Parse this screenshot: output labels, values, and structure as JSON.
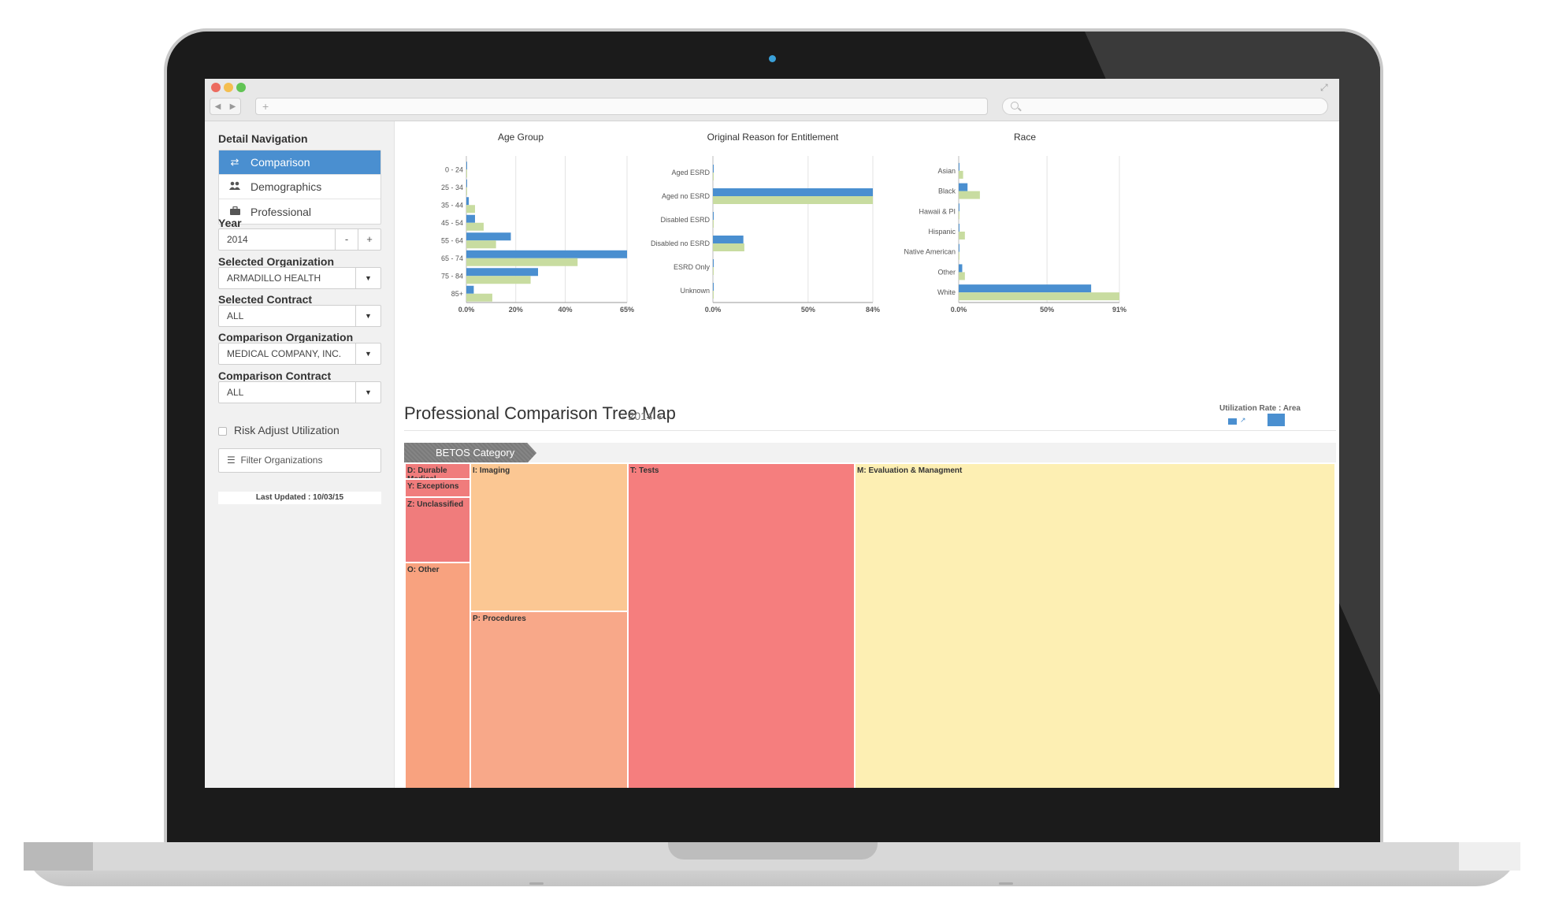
{
  "browser": {
    "url_placeholder": "+",
    "back_glyph": "◀",
    "forward_glyph": "▶",
    "traffic_lights": [
      "#ec6b5f",
      "#f4be4f",
      "#61c454"
    ]
  },
  "sidebar": {
    "detail_nav_heading": "Detail Navigation",
    "nav_items": [
      {
        "label": "Comparison",
        "icon": "swap-arrows-icon",
        "active": true
      },
      {
        "label": "Demographics",
        "icon": "users-icon",
        "active": false
      },
      {
        "label": "Professional",
        "icon": "briefcase-icon",
        "active": false
      }
    ],
    "year": {
      "label": "Year",
      "value": "2014",
      "decrement": "-",
      "increment": "+"
    },
    "selected_org": {
      "label": "Selected Organization",
      "value": "ARMADILLO HEALTH"
    },
    "selected_contract": {
      "label": "Selected Contract",
      "value": "ALL"
    },
    "comparison_org": {
      "label": "Comparison Organization",
      "value": "MEDICAL COMPANY, INC."
    },
    "comparison_contract": {
      "label": "Comparison Contract",
      "value": "ALL"
    },
    "risk_adjust": {
      "label": "Risk Adjust Utilization",
      "checked": false
    },
    "filter_button": "Filter Organizations",
    "last_updated": "Last Updated : 10/03/15"
  },
  "colors": {
    "accent_blue": "#4a8fd0",
    "series_green": "#c8dca0"
  },
  "chart_data": [
    {
      "type": "bar",
      "orientation": "horizontal",
      "title": "Age Group",
      "categories": [
        "0 - 24",
        "25 - 34",
        "35 - 44",
        "45 - 54",
        "55 - 64",
        "65 - 74",
        "75 - 84",
        "85+"
      ],
      "series": [
        {
          "color": "#4a8fd0",
          "values": [
            0.3,
            0.3,
            1,
            3.5,
            18,
            65,
            29,
            3
          ]
        },
        {
          "color": "#c8dca0",
          "values": [
            0.3,
            0.3,
            3.5,
            7,
            12,
            45,
            26,
            10.5
          ]
        }
      ],
      "xticks": [
        "0.0%",
        "20%",
        "40%",
        "65%"
      ],
      "xtick_values": [
        0,
        20,
        40,
        65
      ],
      "xlim": [
        0,
        65
      ],
      "grid": true
    },
    {
      "type": "bar",
      "orientation": "horizontal",
      "title": "Original Reason for Entitlement",
      "categories": [
        "Aged ESRD",
        "Aged no ESRD",
        "Disabled ESRD",
        "Disabled no ESRD",
        "ESRD Only",
        "Unknown"
      ],
      "series": [
        {
          "color": "#4a8fd0",
          "values": [
            0.3,
            84,
            0.3,
            16,
            0.3,
            0.3
          ]
        },
        {
          "color": "#c8dca0",
          "values": [
            0.3,
            84,
            0.3,
            16.5,
            0.3,
            0.3
          ]
        }
      ],
      "xticks": [
        "0.0%",
        "50%",
        "84%"
      ],
      "xtick_values": [
        0,
        50,
        84
      ],
      "xlim": [
        0,
        84
      ],
      "grid": true
    },
    {
      "type": "bar",
      "orientation": "horizontal",
      "title": "Race",
      "categories": [
        "Asian",
        "Black",
        "Hawaii & PI",
        "Hispanic",
        "Native American",
        "Other",
        "White"
      ],
      "series": [
        {
          "color": "#4a8fd0",
          "values": [
            0.3,
            5,
            0.3,
            0.3,
            0.3,
            2,
            75
          ]
        },
        {
          "color": "#c8dca0",
          "values": [
            2.5,
            12,
            0.3,
            3.5,
            0.3,
            3.5,
            91
          ]
        }
      ],
      "xticks": [
        "0.0%",
        "50%",
        "91%"
      ],
      "xtick_values": [
        0,
        50,
        91
      ],
      "xlim": [
        0,
        91
      ],
      "grid": true
    }
  ],
  "treemap": {
    "title": "Professional Comparison Tree Map",
    "year_suffix": "- 2014",
    "legend_title": "Utilization Rate : Area",
    "legend_arrow": "↗",
    "breadcrumb_tab": "BETOS Category",
    "categories": [
      {
        "label": "D: Durable Medical Equipment",
        "color": "#f07c7c"
      },
      {
        "label": "Y: Exceptions",
        "color": "#f07c7c"
      },
      {
        "label": "Z: Unclassified",
        "color": "#f07c7c"
      },
      {
        "label": "O: Other",
        "color": "#f8a27f"
      },
      {
        "label": "I: Imaging",
        "color": "#fbc793"
      },
      {
        "label": "P: Procedures",
        "color": "#f8a889"
      },
      {
        "label": "T: Tests",
        "color": "#f57e7e"
      },
      {
        "label": "M: Evaluation & Managment",
        "color": "#fdefb3"
      }
    ]
  }
}
